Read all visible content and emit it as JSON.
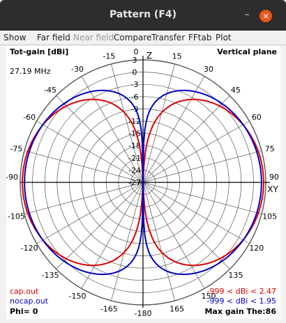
{
  "window": {
    "title": "Pattern  (F4)",
    "minimize": "–",
    "close": "×"
  },
  "menu": [
    "Show",
    "Far field",
    "Near field",
    "Compare",
    "Transfer",
    "FFtab",
    "Plot"
  ],
  "plot": {
    "y_label": "Tot-gain [dBi]",
    "plane": "Vertical plane",
    "frequency": "27.19 MHz",
    "phi": "Phi= 0",
    "max_gain": "Max gain The:86",
    "z_axis": "Z",
    "xy_axis": "XY"
  },
  "colors": {
    "cap": "#e00000",
    "nocap": "#0000c8",
    "grid": "#000000"
  },
  "chart_data": {
    "type": "polar",
    "angle_labels": [
      "0",
      "15",
      "30",
      "45",
      "60",
      "75",
      "90",
      "105",
      "120",
      "135",
      "150",
      "165",
      "-180",
      "-165",
      "-150",
      "-135",
      "-120",
      "-105",
      "-90",
      "-75",
      "-60",
      "-45",
      "-30",
      "-15"
    ],
    "radial_labels": [
      "3",
      "0",
      "-3",
      "-6",
      "-9",
      "-12",
      "-15",
      "-18",
      "-21",
      "-24",
      "-27"
    ],
    "rlim": [
      -27,
      3
    ],
    "series": [
      {
        "name": "cap.out",
        "range": "-999 < dBi < 2.47",
        "max_gain": 2.47,
        "peak_theta": 86
      },
      {
        "name": "nocap.out",
        "range": "-999 < dBi < 1.95",
        "max_gain": 1.95,
        "peak_theta": 86
      }
    ]
  }
}
